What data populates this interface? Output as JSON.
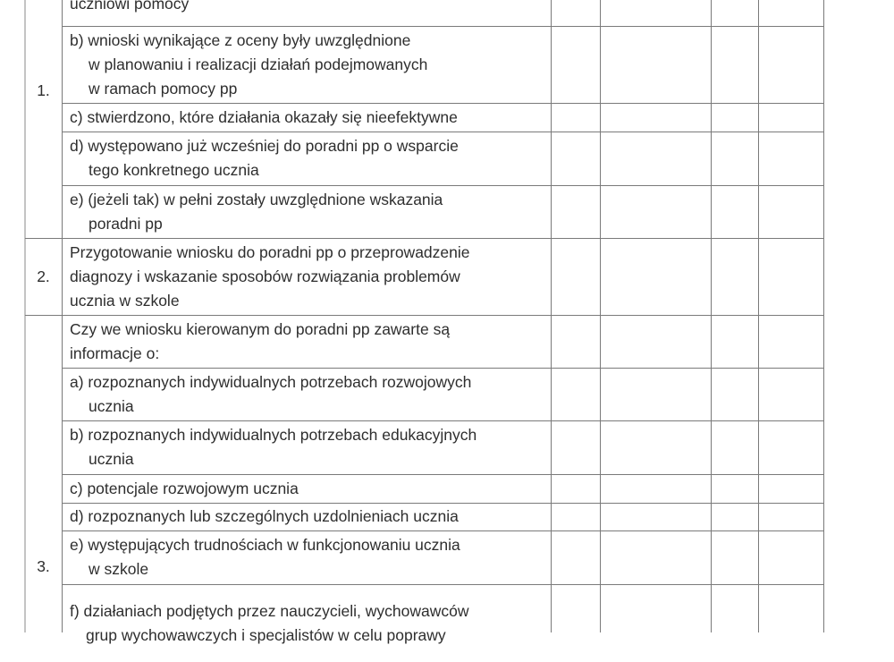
{
  "table": {
    "rows": [
      {
        "number": "1.",
        "items": [
          {
            "lines": [
              "uczniowi pomocy"
            ]
          },
          {
            "lines": [
              "b) wnioski wynikające z oceny były uwzględnione",
              "w planowaniu i realizacji działań podejmowanych",
              "w ramach pomocy pp"
            ]
          },
          {
            "lines": [
              "c) stwierdzono, które działania okazały się nieefektywne"
            ]
          },
          {
            "lines": [
              "d) występowano już wcześniej do poradni pp o wsparcie",
              "tego konkretnego ucznia"
            ]
          },
          {
            "lines": [
              "e) (jeżeli tak) w pełni zostały uwzględnione wskazania",
              "poradni pp"
            ]
          }
        ]
      },
      {
        "number": "2.",
        "items": [
          {
            "lines": [
              "Przygotowanie wniosku do poradni pp o przeprowadzenie",
              "diagnozy i wskazanie sposobów rozwiązania problemów",
              "ucznia w szkole"
            ]
          }
        ]
      },
      {
        "number": "3.",
        "items": [
          {
            "lines": [
              "Czy we wniosku kierowanym do poradni pp zawarte są",
              "informacje o:"
            ]
          },
          {
            "lines": [
              "a) rozpoznanych indywidualnych potrzebach rozwojowych",
              "ucznia"
            ]
          },
          {
            "lines": [
              "b) rozpoznanych indywidualnych potrzebach edukacyjnych",
              "ucznia"
            ]
          },
          {
            "lines": [
              "c) potencjale rozwojowym ucznia"
            ]
          },
          {
            "lines": [
              "d) rozpoznanych lub szczególnych uzdolnieniach ucznia"
            ]
          },
          {
            "lines": [
              "e) występujących trudnościach w funkcjonowaniu ucznia",
              "w szkole"
            ]
          },
          {
            "lines": [
              "f) działaniach podjętych przez nauczycieli, wychowawców",
              "grup wychowawczych i specjalistów w celu poprawy"
            ]
          }
        ]
      }
    ]
  },
  "colors": {
    "text": "#2e2e2e",
    "grid": "#7a7a7a"
  }
}
